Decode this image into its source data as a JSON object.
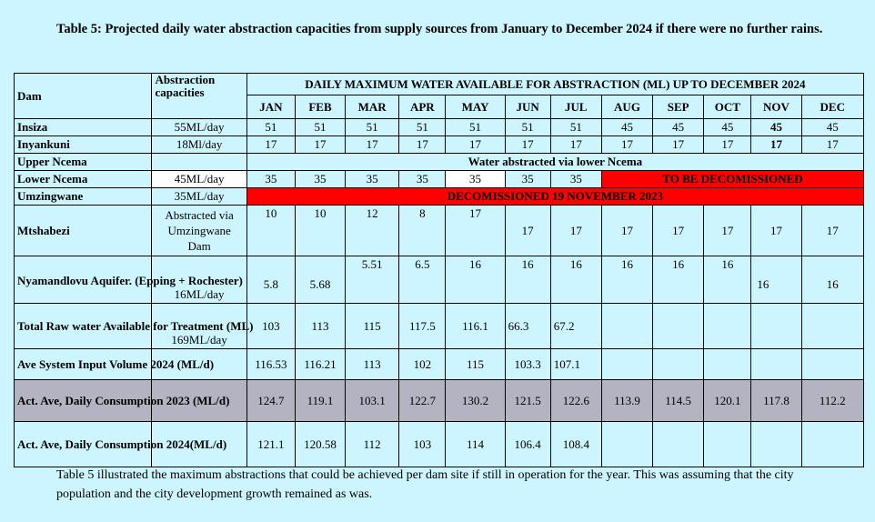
{
  "title": "Table 5: Projected daily water abstraction capacities from supply sources from January to December 2024 if there were no further rains.",
  "header": {
    "dam": "Dam",
    "capacity": "Abstraction capacities",
    "daily_max": "DAILY MAXIMUM WATER AVAILABLE FOR ABSTRACTION (ML) UP TO DECEMBER 2024",
    "months": [
      "JAN",
      "FEB",
      "MAR",
      "APR",
      "MAY",
      "JUN",
      "JUL",
      "AUG",
      "SEP",
      "OCT",
      "NOV",
      "DEC"
    ]
  },
  "rows": {
    "insiza": {
      "dam": "Insiza",
      "capacity": "55ML/day",
      "values": [
        "51",
        "51",
        "51",
        "51",
        "51",
        "51",
        "51",
        "45",
        "45",
        "45",
        "45",
        "45"
      ]
    },
    "inyankuni": {
      "dam": "Inyankuni",
      "capacity": "18Ml/day",
      "values": [
        "17",
        "17",
        "17",
        "17",
        "17",
        "17",
        "17",
        "17",
        "17",
        "17",
        "17",
        "17"
      ]
    },
    "upper_ncema": {
      "dam": "Upper Ncema",
      "note": "Water abstracted via lower Ncema"
    },
    "lower_ncema": {
      "dam": "Lower Ncema",
      "capacity": "45ML/day",
      "values": [
        "35",
        "35",
        "35",
        "35",
        "35",
        "35",
        "35"
      ],
      "note": "TO BE DECOMISSIONED"
    },
    "umzingwane": {
      "dam": "Umzingwane",
      "capacity": "35ML/day",
      "note": "DECOMISSIONED 19 NOVEMBER 2023"
    },
    "mtshabezi": {
      "dam": "Mtshabezi",
      "capacity": "Abstracted via Umzingwane Dam",
      "values": [
        "10",
        "10",
        "12",
        "8",
        "17",
        "17",
        "17",
        "17",
        "17",
        "17",
        "17",
        "17"
      ]
    },
    "nyamandlovu": {
      "dam": "Nyamandlovu Aquifer. (Epping + Rochester)",
      "capacity": "16ML/day",
      "values": [
        "5.8",
        "5.68",
        "5.51",
        "6.5",
        "16",
        "16",
        "16",
        "16",
        "16",
        "16",
        "16",
        "16"
      ]
    },
    "total_raw": {
      "dam": "Total Raw water Available for Treatment (ML)",
      "capacity": "169ML/day",
      "values": [
        "103",
        "113",
        "115",
        "117.5",
        "116.1",
        "66.3",
        "67.2",
        "",
        "",
        "",
        "",
        ""
      ]
    },
    "ave_input": {
      "dam": "Ave System Input Volume 2024 (ML/d)",
      "values": [
        "116.53",
        "116.21",
        "113",
        "102",
        "115",
        "103.3",
        "107.1",
        "",
        "",
        "",
        "",
        ""
      ]
    },
    "act_2023": {
      "dam": "Act. Ave, Daily Consumption 2023 (ML/d)",
      "values": [
        "124.7",
        "119.1",
        "103.1",
        "122.7",
        "130.2",
        "121.5",
        "122.6",
        "113.9",
        "114.5",
        "120.1",
        "117.8",
        "112.2"
      ]
    },
    "act_2024": {
      "dam": "Act. Ave, Daily Consumption 2024(ML/d)",
      "values": [
        "121.1",
        "120.58",
        "112",
        "103",
        "114",
        "106.4",
        "108.4",
        "",
        "",
        "",
        "",
        ""
      ]
    }
  },
  "footer": "Table 5 illustrated the maximum abstractions that could be achieved per dam site if still in operation for the year. This was assuming that the city population and the city development growth remained as was.",
  "colors": {
    "background": "#ccf5ff",
    "decommissioned": "#ff0000",
    "gray_row": "#b3b3c1"
  }
}
